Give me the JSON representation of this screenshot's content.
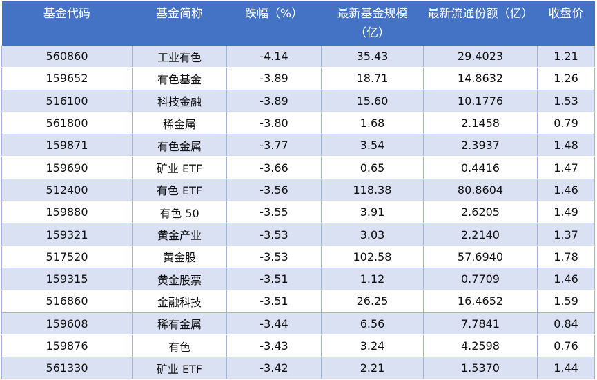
{
  "table": {
    "headers": [
      "基金代码",
      "基金简称",
      "跌幅（%）",
      "最新基金规模（亿）",
      "最新流通份额（亿）",
      "收盘价"
    ],
    "rows": [
      [
        "560860",
        "工业有色",
        "-4.14",
        "35.43",
        "29.4023",
        "1.21"
      ],
      [
        "159652",
        "有色基金",
        "-3.89",
        "18.71",
        "14.8632",
        "1.26"
      ],
      [
        "516100",
        "科技金融",
        "-3.89",
        "15.60",
        "10.1776",
        "1.53"
      ],
      [
        "561800",
        "稀金属",
        "-3.80",
        "1.68",
        "2.1458",
        "0.79"
      ],
      [
        "159871",
        "有色金属",
        "-3.77",
        "3.54",
        "2.3937",
        "1.48"
      ],
      [
        "159690",
        "矿业 ETF",
        "-3.66",
        "0.65",
        "0.4416",
        "1.47"
      ],
      [
        "512400",
        "有色 ETF",
        "-3.56",
        "118.38",
        "80.8604",
        "1.46"
      ],
      [
        "159880",
        "有色 50",
        "-3.55",
        "3.91",
        "2.6205",
        "1.49"
      ],
      [
        "159321",
        "黄金产业",
        "-3.53",
        "3.03",
        "2.2140",
        "1.37"
      ],
      [
        "517520",
        "黄金股",
        "-3.53",
        "102.58",
        "57.6940",
        "1.78"
      ],
      [
        "159315",
        "黄金股票",
        "-3.51",
        "1.12",
        "0.7709",
        "1.46"
      ],
      [
        "516860",
        "金融科技",
        "-3.51",
        "26.25",
        "16.4652",
        "1.59"
      ],
      [
        "159608",
        "稀有金属",
        "-3.44",
        "6.56",
        "7.7841",
        "0.84"
      ],
      [
        "159876",
        "有色",
        "-3.43",
        "3.24",
        "4.2598",
        "0.76"
      ],
      [
        "561330",
        "矿业 ETF",
        "-3.42",
        "2.21",
        "1.5370",
        "1.44"
      ]
    ]
  },
  "colors": {
    "header_bg": "#4472c4",
    "band": "#d9e1f2",
    "grid": "#9fb5de"
  }
}
